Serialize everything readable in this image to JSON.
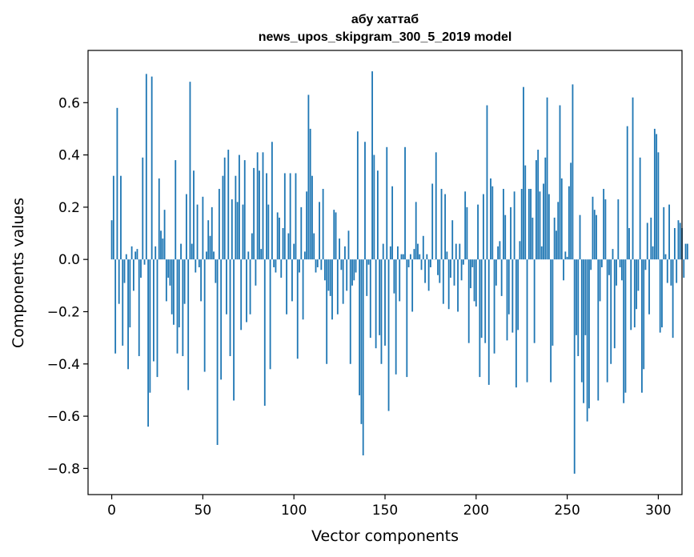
{
  "chart_data": {
    "type": "bar",
    "title": "абу хаттаб",
    "subtitle": "news_upos_skipgram_300_5_2019 model",
    "xlabel": "Vector components",
    "ylabel": "Components values",
    "xlim": [
      -13,
      313
    ],
    "ylim": [
      -0.9,
      0.8
    ],
    "xticks": [
      0,
      50,
      100,
      150,
      200,
      250,
      300
    ],
    "yticks": [
      -0.8,
      -0.6,
      -0.4,
      -0.2,
      0.0,
      0.2,
      0.4,
      0.6
    ],
    "ytick_labels": [
      "−0.8",
      "−0.6",
      "−0.4",
      "−0.2",
      "0.0",
      "0.2",
      "0.4",
      "0.6"
    ],
    "grid": false,
    "bar_color": "#1f77b4",
    "values": [
      0.15,
      0.32,
      -0.36,
      0.58,
      -0.17,
      0.32,
      -0.33,
      -0.09,
      0.02,
      -0.42,
      -0.26,
      0.05,
      -0.12,
      0.03,
      0.04,
      -0.37,
      -0.07,
      0.39,
      -0.02,
      0.71,
      -0.64,
      -0.51,
      0.7,
      -0.39,
      0.05,
      -0.45,
      0.31,
      0.11,
      0.08,
      0.19,
      -0.16,
      -0.07,
      -0.1,
      -0.21,
      -0.25,
      0.38,
      -0.36,
      -0.26,
      0.06,
      -0.37,
      -0.17,
      0.25,
      -0.5,
      0.68,
      0.06,
      0.34,
      -0.05,
      0.21,
      -0.03,
      -0.16,
      0.24,
      -0.43,
      0.03,
      0.15,
      0.09,
      0.2,
      0.03,
      -0.09,
      -0.71,
      0.27,
      -0.46,
      0.32,
      0.39,
      -0.21,
      0.42,
      -0.37,
      0.23,
      -0.54,
      0.32,
      0.22,
      0.4,
      -0.27,
      0.21,
      0.38,
      -0.24,
      0.03,
      -0.21,
      0.1,
      0.35,
      -0.1,
      0.41,
      0.34,
      0.04,
      0.41,
      -0.56,
      0.33,
      0.21,
      -0.42,
      0.45,
      -0.03,
      -0.05,
      0.18,
      0.16,
      -0.07,
      0.12,
      0.33,
      -0.21,
      0.1,
      0.33,
      -0.16,
      0.06,
      0.33,
      -0.38,
      -0.05,
      0.2,
      -0.23,
      0.03,
      0.26,
      0.63,
      0.5,
      0.32,
      0.1,
      -0.05,
      -0.03,
      0.22,
      -0.04,
      0.27,
      -0.08,
      -0.4,
      -0.12,
      -0.14,
      -0.23,
      0.19,
      0.18,
      -0.21,
      0.08,
      -0.04,
      -0.17,
      0.05,
      -0.12,
      0.11,
      -0.4,
      -0.1,
      -0.08,
      -0.05,
      0.49,
      -0.52,
      -0.63,
      -0.75,
      0.45,
      -0.14,
      -0.02,
      -0.3,
      0.72,
      0.4,
      -0.34,
      0.34,
      -0.29,
      -0.4,
      0.06,
      -0.33,
      0.43,
      -0.58,
      0.05,
      0.28,
      -0.13,
      -0.44,
      0.05,
      -0.16,
      0.02,
      0.02,
      0.43,
      -0.45,
      -0.03,
      0.02,
      -0.2,
      0.04,
      0.22,
      0.06,
      0.02,
      -0.04,
      0.09,
      -0.09,
      0.02,
      -0.12,
      -0.03,
      0.29,
      0.0,
      0.41,
      -0.06,
      -0.09,
      0.27,
      -0.17,
      0.25,
      0.03,
      -0.19,
      -0.07,
      0.15,
      -0.1,
      0.06,
      -0.2,
      0.06,
      -0.08,
      -0.02,
      0.26,
      0.2,
      -0.32,
      -0.11,
      -0.03,
      -0.16,
      -0.18,
      0.21,
      -0.45,
      -0.3,
      0.25,
      -0.32,
      0.59,
      -0.48,
      0.31,
      0.28,
      -0.36,
      -0.1,
      0.05,
      0.07,
      -0.14,
      0.27,
      0.17,
      -0.31,
      -0.21,
      0.2,
      -0.28,
      0.26,
      -0.49,
      -0.27,
      0.07,
      0.27,
      0.66,
      0.36,
      -0.47,
      0.27,
      0.27,
      0.16,
      -0.32,
      0.38,
      0.42,
      0.26,
      0.05,
      0.29,
      0.39,
      0.62,
      0.25,
      -0.47,
      -0.33,
      0.16,
      0.11,
      0.22,
      0.59,
      0.31,
      -0.08,
      0.03,
      0.01,
      0.28,
      0.37,
      0.67,
      -0.82,
      -0.29,
      -0.37,
      0.17,
      -0.47,
      -0.55,
      -0.29,
      -0.62,
      -0.57,
      -0.04,
      0.24,
      0.19,
      0.17,
      -0.54,
      -0.16,
      -0.03,
      0.27,
      0.23,
      -0.47,
      -0.06,
      -0.4,
      0.04,
      -0.34,
      -0.1,
      0.23,
      -0.03,
      -0.08,
      -0.55,
      -0.51,
      0.51,
      0.12,
      -0.27,
      0.62,
      -0.26,
      -0.19,
      -0.12,
      0.39,
      -0.51,
      -0.42,
      -0.04,
      0.14,
      -0.21,
      0.16,
      0.05,
      0.5,
      0.48,
      0.41,
      -0.28,
      -0.26,
      0.2,
      0.02,
      -0.09,
      0.21,
      -0.1,
      -0.3,
      0.12,
      -0.09,
      0.15,
      0.14,
      0.12,
      -0.07,
      0.06,
      0.06
    ]
  }
}
